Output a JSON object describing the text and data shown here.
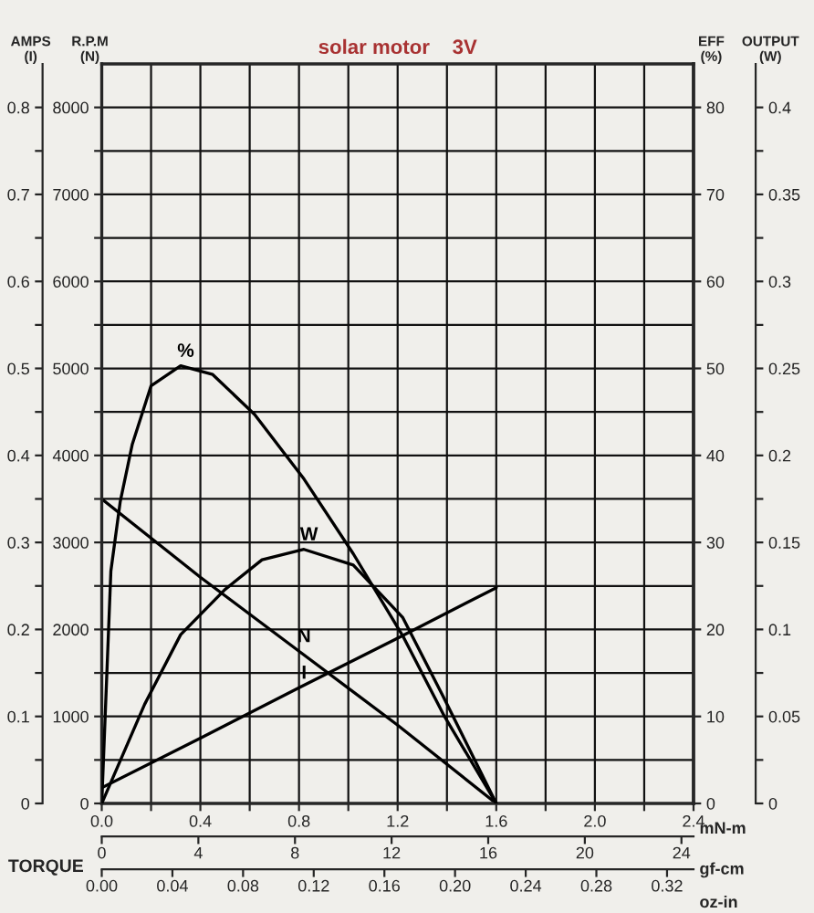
{
  "chart_data": [
    {
      "type": "line",
      "title": "solar motor    3V",
      "xlabel": "mN-m",
      "x2label": "gf-cm",
      "ylabel": "R.P.M\n(N)",
      "y2label": "AMPS\n(I)",
      "annotations": [
        "TORQUE"
      ],
      "xlim": [
        0,
        2.4
      ],
      "xticks": [
        {
          "value": 0,
          "label": "0.0"
        },
        {
          "value": 0.2,
          "label": null
        },
        0.4,
        {
          "value": 0.6,
          "label": null
        },
        0.8,
        {
          "value": 1.0,
          "label": null
        },
        1.2,
        {
          "value": 1.4,
          "label": null
        },
        1.6,
        {
          "value": 1.8,
          "label": null
        },
        {
          "value": 2.0,
          "label": "2.0"
        },
        {
          "value": 2.2,
          "label": null
        },
        2.4
      ],
      "x2lim": [
        0,
        24.5
      ],
      "x2ticks": [
        0,
        4,
        8,
        12,
        16,
        20,
        24
      ],
      "ylim": [
        0,
        8500
      ],
      "yticks": [
        0,
        {
          "value": 500,
          "label": null
        },
        1000,
        {
          "value": 1500,
          "label": null
        },
        2000,
        {
          "value": 2500,
          "label": null
        },
        3000,
        {
          "value": 3500,
          "label": null
        },
        4000,
        {
          "value": 4500,
          "label": null
        },
        5000,
        {
          "value": 5500,
          "label": null
        },
        6000,
        {
          "value": 6500,
          "label": null
        },
        7000,
        {
          "value": 7500,
          "label": null
        },
        8000
      ],
      "y2lim": [
        0,
        0.85
      ],
      "y2ticks": [
        0,
        {
          "value": 0.05,
          "label": null
        },
        0.1,
        {
          "value": 0.15,
          "label": null
        },
        0.2,
        {
          "value": 0.25,
          "label": null
        },
        0.3,
        {
          "value": 0.35,
          "label": null
        },
        0.4,
        {
          "value": 0.45,
          "label": null
        },
        0.5,
        {
          "value": 0.55,
          "label": null
        },
        0.6,
        {
          "value": 0.65,
          "label": null
        },
        0.7,
        {
          "value": 0.75,
          "label": null
        },
        0.8
      ],
      "grid": true,
      "marker": "none",
      "line_style": "solid",
      "series": [
        {
          "name": "N",
          "color": "#000000",
          "x": [
            0,
            0.4,
            0.8,
            1.2,
            1.6
          ],
          "values": [
            3500,
            2600,
            1750,
            900,
            0
          ]
        },
        {
          "name": "I",
          "color": "#000000",
          "axis": "y2",
          "x": [
            0,
            0.4,
            0.8,
            1.2,
            1.6
          ],
          "values": [
            0.018,
            0.075,
            0.133,
            0.19,
            0.248
          ]
        }
      ]
    },
    {
      "type": "line",
      "xlim": [
        0,
        2.4
      ],
      "tick_labels": "y",
      "x2label": "oz-in",
      "x2lim": [
        0,
        0.335
      ],
      "x2ticks": [
        {
          "value": 0,
          "label": "0.00"
        },
        0.04,
        0.08,
        0.12,
        0.16,
        {
          "value": 0.2,
          "label": "0.20"
        },
        0.24,
        0.28,
        0.32
      ],
      "ylabel": "EFF\n(%)",
      "ylim": [
        0,
        85
      ],
      "yticks": [
        0,
        10,
        20,
        30,
        40,
        50,
        60,
        70,
        80
      ],
      "y2label": "OUTPUT\n(W)",
      "y2lim": [
        0,
        0.425
      ],
      "y2ticks": [
        0,
        {
          "value": 0.025,
          "label": null
        },
        0.05,
        {
          "value": 0.075,
          "label": null
        },
        0.1,
        {
          "value": 0.125,
          "label": null
        },
        0.15,
        {
          "value": 0.175,
          "label": null
        },
        0.2,
        {
          "value": 0.225,
          "label": null
        },
        0.25,
        {
          "value": 0.275,
          "label": null
        },
        0.3,
        {
          "value": 0.325,
          "label": null
        },
        0.35,
        {
          "value": 0.375,
          "label": null
        },
        0.4
      ],
      "marker": "none",
      "line_style": "solid",
      "series": [
        {
          "name": "%",
          "color": "#000000",
          "x": [
            0,
            0.037,
            0.075,
            0.124,
            0.2,
            0.32,
            0.45,
            0.62,
            0.82,
            1.02,
            1.22,
            1.39,
            1.6
          ],
          "values": [
            0,
            26.7,
            34.7,
            41.3,
            48,
            50.3,
            49.3,
            44.7,
            37.3,
            28.7,
            19.3,
            10,
            0
          ]
        },
        {
          "name": "W",
          "color": "#000000",
          "axis": "y2",
          "x": [
            0,
            0.174,
            0.32,
            0.5,
            0.65,
            0.82,
            1.02,
            1.22,
            1.39,
            1.6
          ],
          "values": [
            0,
            0.057,
            0.097,
            0.123,
            0.14,
            0.146,
            0.137,
            0.107,
            0.06,
            0
          ]
        }
      ]
    }
  ]
}
